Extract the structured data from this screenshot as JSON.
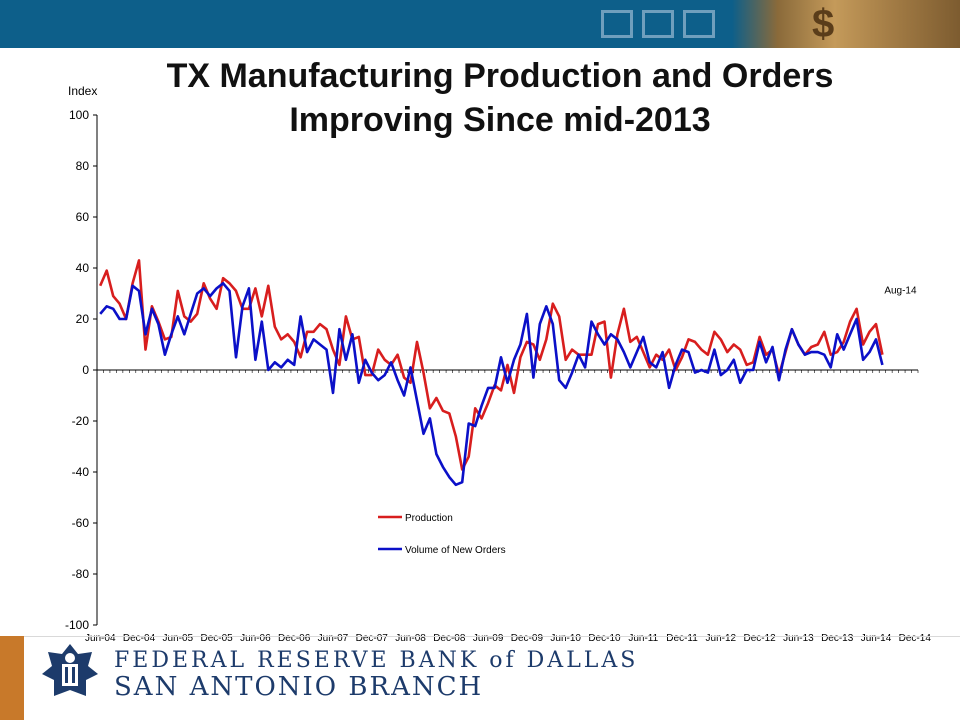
{
  "header": {
    "title_line1": "TX Manufacturing Production and Orders",
    "title_line2": "Improving Since mid-2013"
  },
  "footer": {
    "bank_line1": "FEDERAL RESERVE BANK of DALLAS",
    "bank_line2": "SAN ANTONIO BRANCH"
  },
  "colors": {
    "production": "#d81e1e",
    "orders": "#0b10c8",
    "header_bar": "#0d5f8a",
    "footer_text": "#1d3b6b",
    "accent": "#c8792a"
  },
  "icons": [
    "bank-seal-icon",
    "dollar-icon"
  ],
  "chart_data": {
    "type": "line",
    "title": "TX Manufacturing Production and Orders Improving Since mid-2013",
    "ylabel": "Index",
    "ylim": [
      -100,
      100
    ],
    "yticks": [
      100,
      80,
      60,
      40,
      20,
      0,
      -20,
      -40,
      -60,
      -80,
      -100
    ],
    "xtick_labels": [
      "Jun-04",
      "Dec-04",
      "Jun-05",
      "Dec-05",
      "Jun-06",
      "Dec-06",
      "Jun-07",
      "Dec-07",
      "Jun-08",
      "Dec-08",
      "Jun-09",
      "Dec-09",
      "Jun-10",
      "Dec-10",
      "Jun-11",
      "Dec-11",
      "Jun-12",
      "Dec-12",
      "Jun-13",
      "Dec-13",
      "Jun-14",
      "Dec-14"
    ],
    "x_start": "Jun-04",
    "x_end": "Dec-14",
    "grid": false,
    "legend": "center",
    "annotation": "Aug-14",
    "series": [
      {
        "name": "Production",
        "values": [
          33,
          39,
          29,
          26,
          20,
          34,
          43,
          8,
          25,
          19,
          12,
          13,
          31,
          21,
          19,
          22,
          34,
          28,
          24,
          36,
          34,
          31,
          24,
          24,
          32,
          21,
          33,
          17,
          12,
          14,
          11,
          5,
          15,
          15,
          18,
          16,
          8,
          2,
          21,
          12,
          13,
          -2,
          -2,
          8,
          4,
          2,
          6,
          -3,
          -5,
          11,
          -1,
          -15,
          -11,
          -16,
          -17,
          -26,
          -39,
          -34,
          -15,
          -19,
          -13,
          -6,
          -8,
          2,
          -9,
          5,
          11,
          10,
          4,
          12,
          26,
          21,
          4,
          8,
          6,
          6,
          6,
          18,
          19,
          -3,
          14,
          24,
          11,
          13,
          7,
          1,
          6,
          4,
          8,
          0,
          5,
          12,
          11,
          8,
          6,
          15,
          12,
          7,
          10,
          8,
          2,
          3,
          13,
          6,
          8,
          -2,
          7,
          16,
          10,
          6,
          9,
          10,
          15,
          6,
          7,
          11,
          19,
          24,
          10,
          15,
          18,
          6
        ]
      },
      {
        "name": "Volume of New Orders",
        "values": [
          22,
          25,
          24,
          20,
          20,
          33,
          31,
          14,
          24,
          18,
          6,
          14,
          21,
          14,
          22,
          30,
          32,
          29,
          32,
          34,
          31,
          5,
          25,
          32,
          4,
          19,
          0,
          3,
          1,
          4,
          2,
          21,
          7,
          12,
          10,
          8,
          -9,
          16,
          4,
          14,
          -5,
          4,
          -1,
          -4,
          -2,
          3,
          -4,
          -10,
          1,
          -12,
          -25,
          -19,
          -33,
          -38,
          -42,
          -45,
          -44,
          -21,
          -22,
          -14,
          -7,
          -7,
          5,
          -5,
          4,
          10,
          22,
          -3,
          18,
          25,
          18,
          -4,
          -7,
          -1,
          6,
          1,
          19,
          14,
          10,
          14,
          12,
          7,
          1,
          7,
          13,
          3,
          1,
          7,
          -7,
          2,
          8,
          7,
          -1,
          0,
          -1,
          8,
          -2,
          0,
          4,
          -5,
          0,
          0,
          11,
          3,
          9,
          -4,
          8,
          16,
          10,
          6,
          7,
          7,
          6,
          1,
          14,
          8,
          14,
          20,
          4,
          7,
          12,
          2
        ]
      }
    ]
  }
}
